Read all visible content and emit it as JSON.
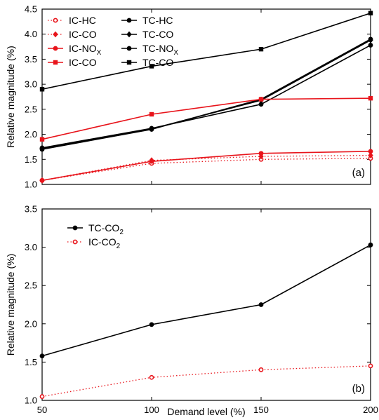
{
  "chart_data": [
    {
      "type": "line",
      "panel_label": "(a)",
      "x": [
        50,
        100,
        150,
        200
      ],
      "xlim": [
        50,
        200
      ],
      "ylim": [
        1.0,
        4.5
      ],
      "yticks": [
        "1.0",
        "1.5",
        "2.0",
        "2.5",
        "3.0",
        "3.5",
        "4.0",
        "4.5"
      ],
      "ylabel": "Relative magnitude (%)",
      "xlabel": "",
      "grid": false,
      "legend_position": "top-left",
      "series": [
        {
          "name": "IC-HC",
          "sub": "",
          "values": [
            1.08,
            1.42,
            1.5,
            1.52
          ],
          "color": "#e8141b",
          "style": "dotted",
          "marker": "open-circle"
        },
        {
          "name": "TC-HC",
          "sub": "",
          "values": [
            1.7,
            2.1,
            2.7,
            3.9
          ],
          "color": "#000000",
          "style": "solid",
          "marker": "circle"
        },
        {
          "name": "IC-CO",
          "sub": "",
          "values": [
            1.08,
            1.48,
            1.56,
            1.58
          ],
          "color": "#e8141b",
          "style": "dotted",
          "marker": "diamond"
        },
        {
          "name": "TC-CO",
          "sub": "",
          "values": [
            1.72,
            2.11,
            2.68,
            3.88
          ],
          "color": "#000000",
          "style": "solid",
          "marker": "diamond"
        },
        {
          "name": "IC-NO",
          "sub": "X",
          "values": [
            1.08,
            1.46,
            1.62,
            1.66
          ],
          "color": "#e8141b",
          "style": "solid",
          "marker": "circle"
        },
        {
          "name": "TC-NO",
          "sub": "X",
          "values": [
            1.73,
            2.12,
            2.6,
            3.78
          ],
          "color": "#000000",
          "style": "solid",
          "marker": "circle"
        },
        {
          "name": "IC-CO",
          "sub": "",
          "values": [
            1.9,
            2.4,
            2.7,
            2.72
          ],
          "color": "#e8141b",
          "style": "solid",
          "marker": "square"
        },
        {
          "name": "TC-CO",
          "sub": "",
          "values": [
            2.9,
            3.36,
            3.7,
            4.42
          ],
          "color": "#000000",
          "style": "solid",
          "marker": "square"
        }
      ]
    },
    {
      "type": "line",
      "panel_label": "(b)",
      "x": [
        50,
        100,
        150,
        200
      ],
      "xticks": [
        "50",
        "100",
        "150",
        "200"
      ],
      "xlim": [
        50,
        200
      ],
      "ylim": [
        1.0,
        3.5
      ],
      "yticks": [
        "1.0",
        "1.5",
        "2.0",
        "2.5",
        "3.0",
        "3.5"
      ],
      "ylabel": "Relative magnitude (%)",
      "xlabel": "Demand level (%)",
      "grid": false,
      "legend_position": "top-left",
      "series": [
        {
          "name": "TC-CO",
          "sub": "2",
          "values": [
            1.58,
            1.99,
            2.25,
            3.03
          ],
          "color": "#000000",
          "style": "solid",
          "marker": "circle"
        },
        {
          "name": "IC-CO",
          "sub": "2",
          "values": [
            1.05,
            1.3,
            1.4,
            1.45
          ],
          "color": "#e8141b",
          "style": "dotted",
          "marker": "open-circle"
        }
      ]
    }
  ]
}
